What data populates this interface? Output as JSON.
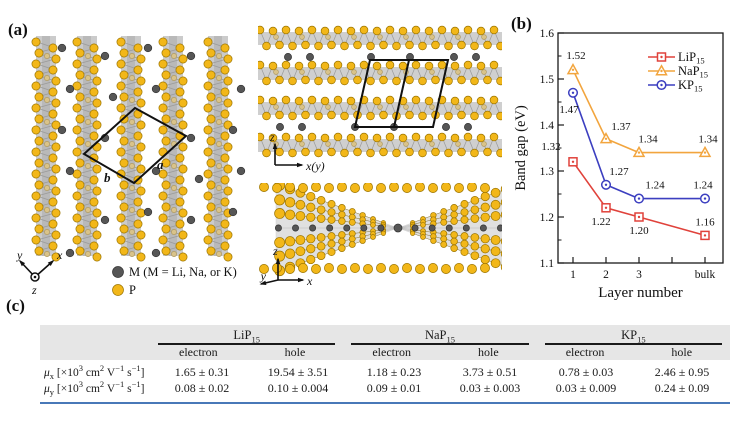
{
  "panel_labels": {
    "a": "(a)",
    "b": "(b)",
    "c": "(c)"
  },
  "structure": {
    "atom_legend": [
      {
        "id": "M",
        "label": "M (M = Li, Na, or K)",
        "color": "#565656"
      },
      {
        "id": "P",
        "label": "P",
        "color": "#f2b719"
      }
    ],
    "unit_cell": {
      "a": "a",
      "b": "b"
    },
    "axes_side_view": {
      "y": "y",
      "x": "x",
      "z": "z"
    },
    "axes_front_view": {
      "z": "z",
      "x": "x(y)"
    },
    "axes_persp_view": {
      "z": "z",
      "x": "x",
      "y": "y"
    },
    "colors": {
      "phosphorus": "#f2b719",
      "phosphorus_edge": "#9c7500",
      "phosphorus_inner": "#d9c38a",
      "metal": "#565656",
      "layer_gray": "#cbcbcb"
    }
  },
  "chart_data": {
    "type": "line",
    "title": "",
    "xlabel": "Layer number",
    "ylabel": "Band gap (eV)",
    "x_tick_labels": [
      "1",
      "2",
      "3",
      "",
      "bulk"
    ],
    "x_tick_positions": [
      1,
      2,
      3,
      4,
      5
    ],
    "x_data_positions": [
      1,
      2,
      3,
      5
    ],
    "ylim": [
      1.1,
      1.6
    ],
    "yticks": [
      1.1,
      1.2,
      1.3,
      1.4,
      1.5,
      1.6
    ],
    "grid": false,
    "legend_position": "top-right",
    "series": [
      {
        "name": "LiP15",
        "base": "LiP",
        "sub": "15",
        "color": "#e0423b",
        "marker": "square",
        "values": [
          1.32,
          1.22,
          1.2,
          1.16
        ]
      },
      {
        "name": "NaP15",
        "base": "NaP",
        "sub": "15",
        "color": "#f2a53e",
        "marker": "triangle",
        "values": [
          1.52,
          1.37,
          1.34,
          1.34
        ]
      },
      {
        "name": "KP15",
        "base": "KP",
        "sub": "15",
        "color": "#3c3fc0",
        "marker": "circle",
        "values": [
          1.47,
          1.27,
          1.24,
          1.24
        ]
      }
    ]
  },
  "table": {
    "groups": [
      {
        "label_html": "LiP<sub>15</sub>"
      },
      {
        "label_html": "NaP<sub>15</sub>"
      },
      {
        "label_html": "KP<sub>15</sub>"
      }
    ],
    "sub_headers": [
      "electron",
      "hole",
      "electron",
      "hole",
      "electron",
      "hole"
    ],
    "rows": [
      {
        "header_html": "<i>μ</i><sub>x</sub> [×10<sup>3</sup> cm<sup>2</sup> V<sup>−1</sup> s<sup>−1</sup>]",
        "values": [
          "1.65 ± 0.31",
          "19.54 ± 3.51",
          "1.18 ± 0.23",
          "3.73 ± 0.51",
          "0.78 ± 0.03",
          "2.46 ± 0.95"
        ]
      },
      {
        "header_html": "<i>μ</i><sub>y</sub> [×10<sup>3</sup> cm<sup>2</sup> V<sup>−1</sup> s<sup>−1</sup>]",
        "values": [
          "0.08 ± 0.02",
          "0.10 ± 0.004",
          "0.09 ± 0.01",
          "0.03 ± 0.003",
          "0.03 ± 0.009",
          "0.24 ± 0.09"
        ]
      }
    ],
    "accent_line_color": "#4878b8"
  }
}
